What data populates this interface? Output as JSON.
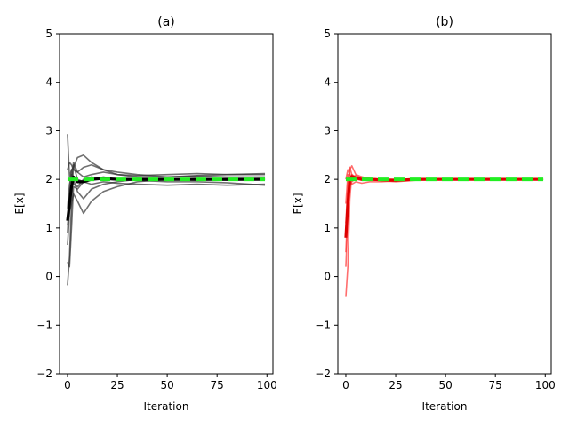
{
  "chart_data": [
    {
      "type": "line",
      "title": "(a)",
      "xlabel": "Iteration",
      "ylabel": "E[x]",
      "xlim": [
        -4,
        103
      ],
      "ylim": [
        -2,
        5
      ],
      "xticks": [
        0,
        25,
        50,
        75,
        100
      ],
      "yticks": [
        -2,
        -1,
        0,
        1,
        2,
        3,
        4,
        5
      ],
      "xtick_labels": [
        "0",
        "25",
        "50",
        "75",
        "100"
      ],
      "ytick_labels": [
        "−2",
        "−1",
        "0",
        "1",
        "2",
        "3",
        "4",
        "5"
      ],
      "grid": false,
      "legend": "none",
      "colors": {
        "runs": "#333333",
        "mean": "#000000",
        "target": "#22ee22"
      },
      "series": [
        {
          "x": [
            0,
            1,
            2,
            3,
            5,
            8,
            12,
            18,
            25,
            35,
            50,
            65,
            80,
            99
          ],
          "y": [
            2.93,
            2.05,
            2.2,
            2.25,
            2.45,
            2.5,
            2.35,
            2.2,
            2.1,
            2.08,
            2.1,
            2.12,
            2.1,
            2.12
          ]
        },
        {
          "x": [
            0,
            1,
            2,
            3,
            5,
            8,
            12,
            18,
            25,
            35,
            50,
            65,
            80,
            99
          ],
          "y": [
            0.65,
            1.3,
            2.0,
            2.35,
            2.15,
            2.25,
            2.3,
            2.2,
            2.15,
            2.1,
            2.05,
            2.07,
            2.05,
            2.05
          ]
        },
        {
          "x": [
            0,
            1,
            2,
            3,
            5,
            8,
            12,
            18,
            25,
            35,
            50,
            65,
            80,
            99
          ],
          "y": [
            -0.18,
            0.4,
            1.5,
            2.3,
            2.0,
            1.95,
            2.0,
            2.05,
            2.0,
            1.98,
            1.95,
            1.95,
            1.93,
            1.88
          ]
        },
        {
          "x": [
            0,
            1,
            2,
            3,
            5,
            8,
            12,
            18,
            25,
            35,
            50,
            65,
            80,
            99
          ],
          "y": [
            0.3,
            0.2,
            1.0,
            1.85,
            1.8,
            1.95,
            1.9,
            1.95,
            1.92,
            1.9,
            1.88,
            1.9,
            1.88,
            1.9
          ]
        },
        {
          "x": [
            0,
            1,
            2,
            3,
            5,
            8,
            12,
            18,
            25,
            35,
            50,
            65,
            80,
            99
          ],
          "y": [
            1.05,
            1.35,
            1.5,
            1.7,
            1.55,
            1.3,
            1.55,
            1.75,
            1.85,
            1.95,
            2.0,
            2.02,
            2.0,
            2.0
          ]
        },
        {
          "x": [
            0,
            1,
            2,
            3,
            5,
            8,
            12,
            18,
            25,
            35,
            50,
            65,
            80,
            99
          ],
          "y": [
            2.2,
            2.35,
            2.3,
            2.2,
            2.15,
            2.05,
            2.1,
            2.15,
            2.1,
            2.05,
            2.05,
            2.08,
            2.1,
            2.1
          ]
        },
        {
          "x": [
            0,
            1,
            2,
            3,
            5,
            8,
            12,
            18,
            25,
            35,
            50,
            65,
            80,
            99
          ],
          "y": [
            1.4,
            1.9,
            2.1,
            2.0,
            1.75,
            1.6,
            1.8,
            1.9,
            1.95,
            2.0,
            2.0,
            1.98,
            2.0,
            2.02
          ]
        },
        {
          "x": [
            0,
            1,
            2,
            3,
            5,
            8,
            12,
            18,
            25,
            35,
            50,
            65,
            80,
            99
          ],
          "y": [
            0.9,
            1.7,
            2.2,
            1.9,
            1.85,
            2.0,
            2.05,
            2.0,
            2.0,
            2.02,
            2.0,
            2.0,
            1.98,
            2.0
          ]
        }
      ],
      "mean_series": {
        "x": [
          0,
          1,
          2,
          3,
          5,
          8,
          12,
          18,
          25,
          35,
          50,
          65,
          80,
          99
        ],
        "y": [
          1.15,
          1.5,
          1.85,
          2.05,
          1.95,
          1.95,
          2.0,
          2.02,
          2.0,
          2.0,
          2.0,
          2.0,
          2.0,
          2.0
        ]
      },
      "target_value": 2.0
    },
    {
      "type": "line",
      "title": "(b)",
      "xlabel": "Iteration",
      "ylabel": "E[x]",
      "xlim": [
        -4,
        103
      ],
      "ylim": [
        -2,
        5
      ],
      "xticks": [
        0,
        25,
        50,
        75,
        100
      ],
      "yticks": [
        -2,
        -1,
        0,
        1,
        2,
        3,
        4,
        5
      ],
      "xtick_labels": [
        "0",
        "25",
        "50",
        "75",
        "100"
      ],
      "ytick_labels": [
        "−2",
        "−1",
        "0",
        "1",
        "2",
        "3",
        "4",
        "5"
      ],
      "grid": false,
      "legend": "none",
      "colors": {
        "runs": "#ff3030",
        "mean": "#dd0000",
        "target": "#22ee22"
      },
      "series": [
        {
          "x": [
            0,
            1,
            2,
            3,
            5,
            8,
            12,
            18,
            25,
            35,
            50,
            65,
            80,
            99
          ],
          "y": [
            -0.42,
            0.2,
            1.6,
            2.1,
            2.05,
            2.0,
            2.02,
            2.0,
            2.0,
            2.0,
            2.0,
            2.0,
            2.0,
            2.0
          ]
        },
        {
          "x": [
            0,
            1,
            2,
            3,
            5,
            8,
            12,
            18,
            25,
            35,
            50,
            65,
            80,
            99
          ],
          "y": [
            0.2,
            1.2,
            2.2,
            2.28,
            2.1,
            2.05,
            2.02,
            2.0,
            2.0,
            2.0,
            2.0,
            2.0,
            2.0,
            2.0
          ]
        },
        {
          "x": [
            0,
            1,
            2,
            3,
            5,
            8,
            12,
            18,
            25,
            35,
            50,
            65,
            80,
            99
          ],
          "y": [
            1.1,
            1.9,
            2.25,
            2.1,
            2.0,
            1.98,
            2.0,
            2.0,
            1.98,
            2.0,
            2.0,
            2.0,
            2.0,
            2.0
          ]
        },
        {
          "x": [
            0,
            1,
            2,
            3,
            5,
            8,
            12,
            18,
            25,
            35,
            50,
            65,
            80,
            99
          ],
          "y": [
            1.5,
            2.1,
            1.95,
            1.9,
            1.95,
            1.92,
            1.95,
            1.95,
            1.97,
            2.0,
            2.0,
            2.0,
            2.0,
            2.0
          ]
        },
        {
          "x": [
            0,
            1,
            2,
            3,
            5,
            8,
            12,
            18,
            25,
            35,
            50,
            65,
            80,
            99
          ],
          "y": [
            2.0,
            2.2,
            2.1,
            2.05,
            2.08,
            2.02,
            2.0,
            1.97,
            1.95,
            1.98,
            2.0,
            2.0,
            2.0,
            2.0
          ]
        },
        {
          "x": [
            0,
            1,
            2,
            3,
            5,
            8,
            12,
            18,
            25,
            35,
            50,
            65,
            80,
            99
          ],
          "y": [
            0.5,
            1.5,
            1.85,
            1.95,
            2.02,
            2.05,
            2.02,
            2.0,
            2.0,
            2.0,
            2.0,
            2.0,
            2.0,
            2.0
          ]
        }
      ],
      "mean_series": {
        "x": [
          0,
          1,
          2,
          3,
          5,
          8,
          12,
          18,
          25,
          35,
          50,
          65,
          80,
          99
        ],
        "y": [
          0.8,
          1.5,
          2.0,
          2.06,
          2.03,
          2.0,
          2.0,
          1.99,
          1.98,
          2.0,
          2.0,
          2.0,
          2.0,
          2.0
        ]
      },
      "target_value": 2.0
    }
  ]
}
